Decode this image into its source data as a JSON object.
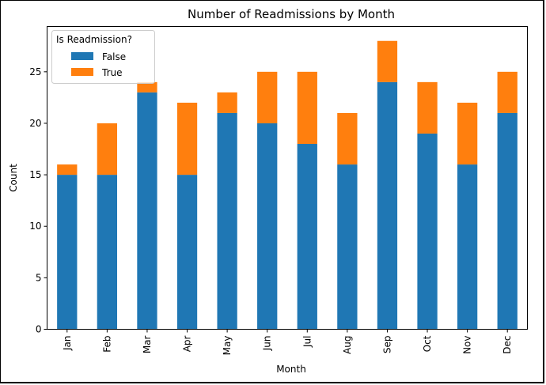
{
  "chart_data": {
    "type": "bar",
    "stacked": true,
    "title": "Number of Readmissions by Month",
    "xlabel": "Month",
    "ylabel": "Count",
    "categories": [
      "Jan",
      "Feb",
      "Mar",
      "Apr",
      "May",
      "Jun",
      "Jul",
      "Aug",
      "Sep",
      "Oct",
      "Nov",
      "Dec"
    ],
    "series": [
      {
        "name": "False",
        "color": "#1f77b4",
        "values": [
          15,
          15,
          23,
          15,
          21,
          20,
          18,
          16,
          24,
          19,
          16,
          21
        ]
      },
      {
        "name": "True",
        "color": "#ff7f0e",
        "values": [
          1,
          5,
          1,
          7,
          2,
          5,
          7,
          5,
          4,
          5,
          6,
          4
        ]
      }
    ],
    "ylim": [
      0,
      29.4
    ],
    "yticks": [
      0,
      5,
      10,
      15,
      20,
      25
    ],
    "legend": {
      "title": "Is Readmission?",
      "placement": "top-left"
    },
    "grid": false
  }
}
